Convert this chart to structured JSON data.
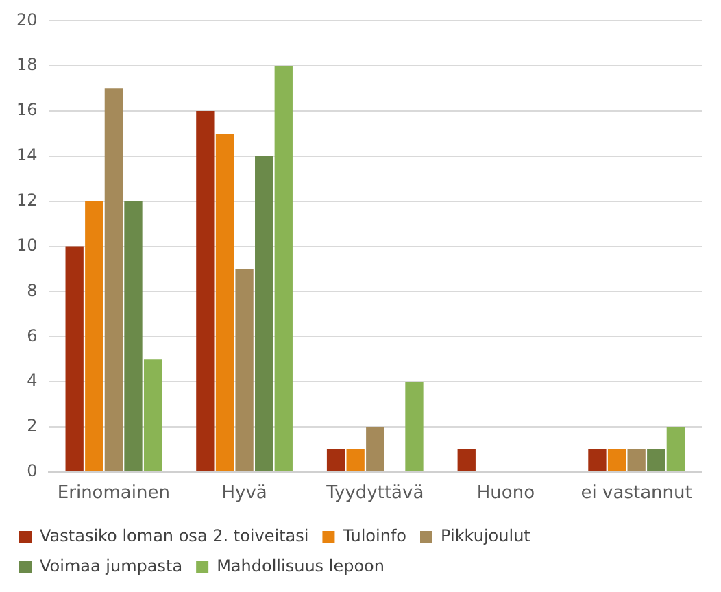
{
  "chart_data": {
    "type": "bar",
    "categories": [
      "Erinomainen",
      "Hyvä",
      "Tyydyttävä",
      "Huono",
      "ei vastannut"
    ],
    "series": [
      {
        "name": "Vastasiko loman osa 2. toiveitasi",
        "color": "#a5300f",
        "values": [
          10,
          16,
          1,
          1,
          1
        ]
      },
      {
        "name": "Tuloinfo",
        "color": "#e8830e",
        "values": [
          12,
          15,
          1,
          0,
          1
        ]
      },
      {
        "name": "Pikkujoulut",
        "color": "#a58a5a",
        "values": [
          17,
          9,
          2,
          0,
          1
        ]
      },
      {
        "name": "Voimaa jumpasta",
        "color": "#6b8a4a",
        "values": [
          12,
          14,
          0,
          0,
          1
        ]
      },
      {
        "name": "Mahdollisuus lepoon",
        "color": "#8ab454",
        "values": [
          5,
          18,
          4,
          0,
          2
        ]
      }
    ],
    "ylim": [
      0,
      20
    ],
    "yticks": [
      0,
      2,
      4,
      6,
      8,
      10,
      12,
      14,
      16,
      18,
      20
    ],
    "grid": "y",
    "legend": "bottom"
  }
}
